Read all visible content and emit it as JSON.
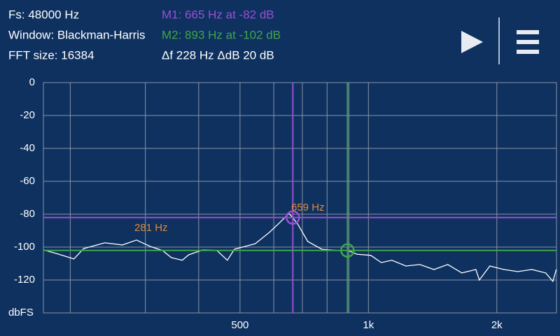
{
  "header": {
    "info": [
      "Fs: 48000 Hz",
      "Window: Blackman-Harris",
      "FFT size: 16384"
    ],
    "delta": "Δf 228 Hz ΔdB 20 dB"
  },
  "markers": [
    {
      "label": "M1: 665 Hz at -82 dB",
      "freq": 665,
      "db": -82,
      "color": "#9a4fd0"
    },
    {
      "label": "M2: 893 Hz at -102 dB",
      "freq": 893,
      "db": -102,
      "color": "#3fa648"
    }
  ],
  "chart_data": {
    "type": "line",
    "y_label": "dbFS",
    "xscale": "log",
    "xlim": [
      173,
      2760
    ],
    "ylim": [
      -140,
      0
    ],
    "yticks": [
      0,
      -20,
      -40,
      -60,
      -80,
      -100,
      -120
    ],
    "xticks": [
      500,
      {
        "value": 1000,
        "label": "1k"
      },
      {
        "value": 2000,
        "label": "2k"
      }
    ],
    "xgrid": [
      200,
      300,
      400,
      600,
      700,
      800,
      900
    ],
    "grid": true,
    "color": "#ffffff",
    "annotations": [
      "659 Hz",
      "281 Hz"
    ],
    "annotation_color": "#e08a3a",
    "x": [
      173,
      185,
      204,
      215,
      241,
      265,
      286,
      308,
      329,
      345,
      366,
      379,
      409,
      441,
      467,
      485,
      513,
      543,
      586,
      620,
      651,
      664,
      682,
      721,
      778,
      839,
      894,
      939,
      1013,
      1072,
      1135,
      1224,
      1320,
      1424,
      1535,
      1656,
      1786,
      1820,
      1926,
      2077,
      2240,
      2415,
      2604,
      2706,
      2757
    ],
    "values": [
      -101.7,
      -103.8,
      -107.2,
      -100.9,
      -97.4,
      -98.7,
      -95.7,
      -99.6,
      -102,
      -106.4,
      -108,
      -104.7,
      -101.7,
      -102,
      -108,
      -101.3,
      -99.6,
      -97.9,
      -91,
      -85,
      -79.6,
      -82,
      -85.8,
      -96.6,
      -101.3,
      -102,
      -102,
      -104.3,
      -105,
      -109.4,
      -108,
      -111.5,
      -110.6,
      -113.6,
      -110.6,
      -115.7,
      -113.6,
      -120,
      -111.5,
      -113.6,
      -114.9,
      -113.6,
      -115.7,
      -120.8,
      -113.6
    ]
  }
}
